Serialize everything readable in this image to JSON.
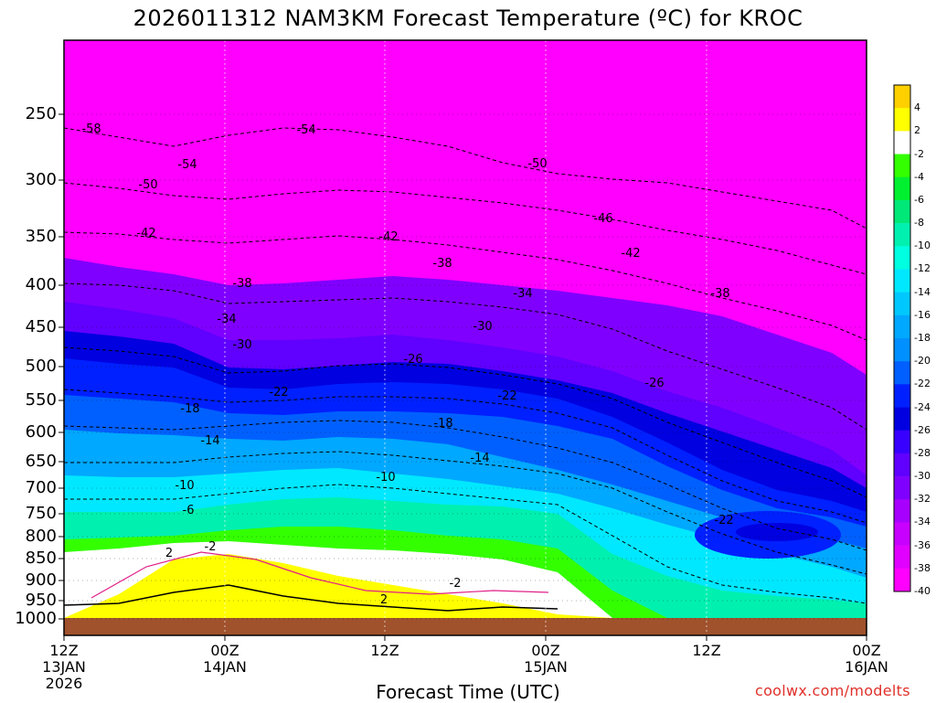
{
  "chart_data": {
    "type": "heatmap",
    "title": "2026011312 NAM3KM Forecast Temperature (ºC) for KROC",
    "xlabel": "Forecast Time (UTC)",
    "ylabel": "",
    "credit": "coolwx.com/modelts",
    "y_ticks": [
      "250",
      "300",
      "350",
      "400",
      "450",
      "500",
      "550",
      "600",
      "650",
      "700",
      "750",
      "800",
      "850",
      "900",
      "950",
      "1000"
    ],
    "x_ticks": [
      {
        "l1": "12Z",
        "l2": "13JAN",
        "l3": "2026"
      },
      {
        "l1": "00Z",
        "l2": "14JAN",
        "l3": ""
      },
      {
        "l1": "12Z",
        "l2": "",
        "l3": ""
      },
      {
        "l1": "00Z",
        "l2": "15JAN",
        "l3": ""
      },
      {
        "l1": "12Z",
        "l2": "",
        "l3": ""
      },
      {
        "l1": "00Z",
        "l2": "16JAN",
        "l3": ""
      }
    ],
    "colorbar": {
      "labels": [
        "4",
        "2",
        "-2",
        "-4",
        "-6",
        "-8",
        "-10",
        "-12",
        "-14",
        "-16",
        "-18",
        "-20",
        "-22",
        "-24",
        "-26",
        "-28",
        "-30",
        "-32",
        "-34",
        "-36",
        "-38",
        "-40"
      ],
      "colors": [
        "#ffd000",
        "#ffff00",
        "#ffffff",
        "#33ff00",
        "#00f030",
        "#00e878",
        "#00f0b0",
        "#00ffe0",
        "#00e8ff",
        "#00c8ff",
        "#00a8ff",
        "#0090ff",
        "#0060ff",
        "#0020ff",
        "#0000e0",
        "#3800ff",
        "#6000ff",
        "#8000ff",
        "#a800ff",
        "#c800ff",
        "#e000ff",
        "#ff00ff"
      ]
    },
    "contour_labels": [
      "-58",
      "-54",
      "-54",
      "-50",
      "-50",
      "-46",
      "-42",
      "-42",
      "-42",
      "-38",
      "-38",
      "-38",
      "-34",
      "-34",
      "-30",
      "-30",
      "-26",
      "-26",
      "-22",
      "-22",
      "-18",
      "-18",
      "-14",
      "-14",
      "-10",
      "-10",
      "-6",
      "-2",
      "-2",
      "2",
      "-22",
      "2"
    ],
    "ground_color": "#a0522d",
    "grid": true
  }
}
